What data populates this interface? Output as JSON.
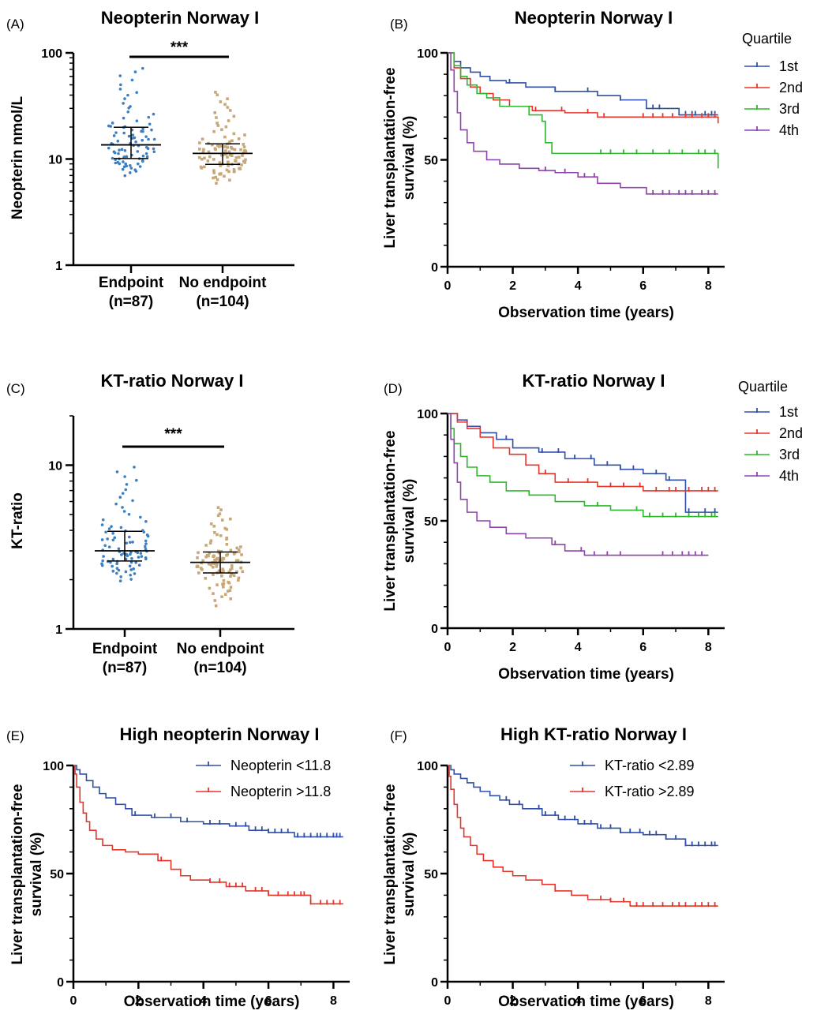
{
  "colors": {
    "q1": "#2f4fa8",
    "q2": "#e8352b",
    "q3": "#2eb82e",
    "q4": "#8e44ad",
    "endpoint_dots": "#3a7fc4",
    "noendpoint_dots": "#c8a878",
    "low_group": "#2f4fa8",
    "high_group": "#e8352b"
  },
  "chart_data": [
    {
      "id": "A",
      "type": "scatter",
      "panel_label": "(A)",
      "title": "Neopterin Norway I",
      "ylabel": "Neopterin nmol/L",
      "yscale": "log",
      "ylim": [
        1,
        100
      ],
      "yticks": [
        1,
        10,
        100
      ],
      "categories": [
        "Endpoint",
        "No endpoint"
      ],
      "category_counts": [
        "(n=87)",
        "(n=104)"
      ],
      "significance": "***",
      "groups": [
        {
          "name": "Endpoint",
          "n": 87,
          "median": 13.6,
          "q1": 10.1,
          "q3": 19.9,
          "min": 6.6,
          "max": 76
        },
        {
          "name": "No endpoint",
          "n": 104,
          "median": 11.3,
          "q1": 8.9,
          "q3": 13.9,
          "min": 5.6,
          "max": 44
        }
      ]
    },
    {
      "id": "B",
      "type": "line",
      "panel_label": "(B)",
      "title": "Neopterin Norway I",
      "xlabel": "Observation time (years)",
      "ylabel": "Liver transplantation-free survival (%)",
      "xlim": [
        0,
        8.5
      ],
      "ylim": [
        0,
        100
      ],
      "xticks": [
        0,
        2,
        4,
        6,
        8
      ],
      "yticks": [
        0,
        50,
        100
      ],
      "legend_title": "Quartile",
      "series": [
        {
          "name": "1st",
          "color_key": "q1",
          "x": [
            0,
            0.2,
            0.4,
            0.7,
            1.0,
            1.3,
            1.8,
            2.4,
            3.3,
            4.6,
            5.3,
            6.1,
            7.1,
            8.3
          ],
          "y": [
            100,
            96,
            93,
            91,
            89,
            87,
            86,
            84,
            82,
            80,
            78,
            74,
            71,
            71
          ],
          "censor": [
            1.9,
            3.3,
            4.3,
            5.3,
            6.3,
            6.5,
            7.3,
            7.5,
            7.6,
            7.9,
            8.1,
            8.2
          ]
        },
        {
          "name": "2nd",
          "color_key": "q2",
          "x": [
            0,
            0.2,
            0.4,
            0.7,
            1.0,
            1.4,
            1.9,
            2.6,
            3.6,
            4.6,
            8.3
          ],
          "y": [
            100,
            93,
            88,
            84,
            81,
            78,
            75,
            73,
            72,
            70,
            67
          ],
          "censor": [
            2.7,
            3.5,
            4.3,
            4.8,
            6.0,
            6.3,
            6.6,
            6.9,
            7.3,
            7.5,
            7.8,
            8.0,
            8.2
          ]
        },
        {
          "name": "3rd",
          "color_key": "q3",
          "x": [
            0,
            0.2,
            0.4,
            0.6,
            0.9,
            1.2,
            1.6,
            2.5,
            2.9,
            3.0,
            3.2,
            7.3,
            8.3
          ],
          "y": [
            100,
            94,
            89,
            85,
            81,
            79,
            75,
            71,
            68,
            58,
            53,
            53,
            46
          ],
          "censor": [
            4.7,
            5.0,
            5.4,
            5.8,
            6.3,
            6.8,
            7.2,
            7.7,
            7.9,
            8.2
          ]
        },
        {
          "name": "4th",
          "color_key": "q4",
          "x": [
            0,
            0.1,
            0.2,
            0.3,
            0.4,
            0.6,
            0.8,
            1.2,
            1.6,
            2.2,
            2.8,
            3.3,
            4.0,
            4.6,
            5.3,
            6.1,
            8.3
          ],
          "y": [
            100,
            92,
            82,
            72,
            64,
            58,
            54,
            50,
            48,
            46,
            45,
            44,
            42,
            39,
            37,
            34,
            34
          ],
          "censor": [
            3.0,
            3.6,
            4.2,
            4.5,
            6.3,
            6.6,
            6.8,
            7.1,
            7.3,
            7.5,
            7.8,
            8.0,
            8.2
          ]
        }
      ]
    },
    {
      "id": "C",
      "type": "scatter",
      "panel_label": "(C)",
      "title": "KT-ratio Norway I",
      "ylabel": "KT-ratio",
      "yscale": "log",
      "ylim": [
        1,
        20
      ],
      "yticks": [
        1,
        10
      ],
      "categories": [
        "Endpoint",
        "No endpoint"
      ],
      "category_counts": [
        "(n=87)",
        "(n=104)"
      ],
      "significance": "***",
      "groups": [
        {
          "name": "Endpoint",
          "n": 87,
          "median": 3.0,
          "q1": 2.6,
          "q3": 3.95,
          "min": 1.85,
          "max": 10.1
        },
        {
          "name": "No endpoint",
          "n": 104,
          "median": 2.55,
          "q1": 2.2,
          "q3": 2.95,
          "min": 1.3,
          "max": 5.6
        }
      ]
    },
    {
      "id": "D",
      "type": "line",
      "panel_label": "(D)",
      "title": "KT-ratio Norway I",
      "xlabel": "Observation time (years)",
      "ylabel": "Liver transplantation-free survival (%)",
      "xlim": [
        0,
        8.5
      ],
      "ylim": [
        0,
        100
      ],
      "xticks": [
        0,
        2,
        4,
        6,
        8
      ],
      "yticks": [
        0,
        50,
        100
      ],
      "legend_title": "Quartile",
      "series": [
        {
          "name": "1st",
          "color_key": "q1",
          "x": [
            0,
            0.3,
            0.6,
            1.0,
            1.5,
            2.0,
            2.8,
            3.6,
            4.5,
            5.3,
            6.0,
            6.7,
            7.3,
            8.3
          ],
          "y": [
            100,
            97,
            94,
            91,
            88,
            84,
            82,
            79,
            76,
            74,
            72,
            69,
            54,
            54
          ],
          "censor": [
            1.8,
            2.9,
            3.4,
            3.9,
            4.4,
            4.9,
            5.3,
            5.7,
            6.4,
            6.8,
            7.4,
            7.9,
            8.2
          ]
        },
        {
          "name": "2nd",
          "color_key": "q2",
          "x": [
            0,
            0.3,
            0.6,
            1.0,
            1.4,
            1.9,
            2.4,
            2.8,
            3.3,
            4.6,
            6.0,
            8.3
          ],
          "y": [
            100,
            96,
            93,
            89,
            84,
            81,
            76,
            72,
            68,
            66,
            64,
            64
          ],
          "censor": [
            3.0,
            3.7,
            4.3,
            5.0,
            5.4,
            5.9,
            6.4,
            6.8,
            7.0,
            7.4,
            7.8,
            8.0,
            8.2
          ]
        },
        {
          "name": "3rd",
          "color_key": "q3",
          "x": [
            0,
            0.1,
            0.2,
            0.4,
            0.6,
            0.9,
            1.3,
            1.8,
            2.5,
            3.3,
            4.2,
            5.0,
            6.0,
            8.3
          ],
          "y": [
            100,
            93,
            86,
            80,
            75,
            71,
            68,
            64,
            62,
            59,
            57,
            55,
            52,
            52
          ],
          "censor": [
            4.6,
            5.8,
            6.2,
            6.6,
            7.0,
            7.4,
            7.7,
            7.9,
            8.1,
            8.2
          ]
        },
        {
          "name": "4th",
          "color_key": "q4",
          "x": [
            0,
            0.1,
            0.2,
            0.3,
            0.4,
            0.6,
            0.9,
            1.3,
            1.8,
            2.4,
            3.2,
            3.6,
            4.2,
            8.0
          ],
          "y": [
            100,
            88,
            77,
            68,
            60,
            54,
            50,
            47,
            44,
            42,
            39,
            36,
            34,
            34
          ],
          "censor": [
            3.3,
            4.1,
            4.5,
            4.9,
            5.3,
            6.6,
            6.9,
            7.2,
            7.4,
            7.6,
            7.8
          ]
        }
      ]
    },
    {
      "id": "E",
      "type": "line",
      "panel_label": "(E)",
      "title": "High neopterin Norway I",
      "xlabel": "Observation time (years)",
      "ylabel": "Liver transplantation-free survival (%)",
      "xlim": [
        0,
        8.5
      ],
      "ylim": [
        0,
        100
      ],
      "xticks": [
        0,
        2,
        4,
        6,
        8
      ],
      "yticks": [
        0,
        50,
        100
      ],
      "series": [
        {
          "name": "Neopterin <11.8",
          "color_key": "low_group",
          "x": [
            0,
            0.1,
            0.2,
            0.4,
            0.6,
            0.8,
            1.0,
            1.3,
            1.6,
            1.8,
            2.4,
            3.3,
            4.0,
            4.8,
            5.4,
            6.0,
            6.8,
            8.3
          ],
          "y": [
            100,
            98,
            96,
            93,
            90,
            87,
            85,
            82,
            80,
            77,
            76,
            74,
            73,
            72,
            70,
            69,
            67,
            67
          ],
          "censor": [
            1.9,
            2.5,
            3.0,
            3.5,
            4.2,
            4.5,
            5.0,
            5.3,
            5.6,
            5.8,
            6.0,
            6.2,
            6.4,
            6.6,
            6.9,
            7.1,
            7.3,
            7.5,
            7.6,
            7.8,
            8.0,
            8.1,
            8.2
          ]
        },
        {
          "name": "Neopterin >11.8",
          "color_key": "high_group",
          "x": [
            0,
            0.05,
            0.1,
            0.2,
            0.3,
            0.4,
            0.5,
            0.7,
            0.9,
            1.2,
            1.6,
            2.0,
            2.6,
            3.0,
            3.3,
            3.6,
            4.2,
            4.7,
            5.3,
            6.0,
            7.3,
            8.3
          ],
          "y": [
            100,
            96,
            90,
            83,
            78,
            74,
            70,
            66,
            63,
            61,
            60,
            59,
            56,
            52,
            49,
            47,
            46,
            44,
            42,
            40,
            36,
            36
          ],
          "censor": [
            2.7,
            4.2,
            4.5,
            4.8,
            5.0,
            5.2,
            5.6,
            5.8,
            6.0,
            6.3,
            6.6,
            6.8,
            7.0,
            7.1,
            7.3,
            7.6,
            7.8,
            8.0,
            8.2
          ]
        }
      ]
    },
    {
      "id": "F",
      "type": "line",
      "panel_label": "(F)",
      "title": "High KT-ratio Norway I",
      "xlabel": "Observation time (years)",
      "ylabel": "Liver transplantation-free survival (%)",
      "xlim": [
        0,
        8.5
      ],
      "ylim": [
        0,
        100
      ],
      "xticks": [
        0,
        2,
        4,
        6,
        8
      ],
      "yticks": [
        0,
        50,
        100
      ],
      "series": [
        {
          "name": "KT-ratio <2.89",
          "color_key": "low_group",
          "x": [
            0,
            0.1,
            0.2,
            0.4,
            0.6,
            0.8,
            1.0,
            1.3,
            1.6,
            1.9,
            2.3,
            2.9,
            3.4,
            4.0,
            4.6,
            5.3,
            6.0,
            6.7,
            7.3,
            8.3
          ],
          "y": [
            100,
            98,
            96,
            94,
            92,
            90,
            88,
            86,
            84,
            82,
            80,
            77,
            75,
            73,
            71,
            69,
            68,
            66,
            63,
            63
          ],
          "censor": [
            1.8,
            2.2,
            2.8,
            3.0,
            3.3,
            3.6,
            3.9,
            4.2,
            4.4,
            4.7,
            5.0,
            5.3,
            5.6,
            5.9,
            6.2,
            6.4,
            6.7,
            7.0,
            7.3,
            7.5,
            7.7,
            7.9,
            8.1,
            8.2
          ]
        },
        {
          "name": "KT-ratio >2.89",
          "color_key": "high_group",
          "x": [
            0,
            0.05,
            0.1,
            0.2,
            0.3,
            0.4,
            0.5,
            0.7,
            0.9,
            1.1,
            1.4,
            1.7,
            2.0,
            2.4,
            2.9,
            3.3,
            3.8,
            4.3,
            5.0,
            5.6,
            8.3
          ],
          "y": [
            100,
            95,
            89,
            82,
            76,
            71,
            67,
            63,
            59,
            56,
            53,
            51,
            49,
            47,
            45,
            42,
            40,
            38,
            37,
            35,
            35
          ],
          "censor": [
            3.3,
            4.7,
            5.0,
            5.4,
            5.8,
            6.0,
            6.3,
            6.6,
            6.9,
            7.1,
            7.3,
            7.6,
            7.8,
            8.0,
            8.2
          ]
        }
      ]
    }
  ]
}
